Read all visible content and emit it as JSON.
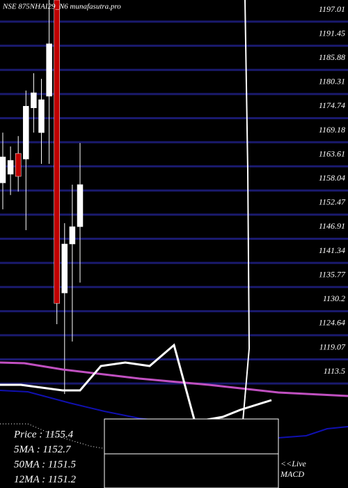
{
  "chart_data": {
    "type": "candlestick",
    "title": "NSE 875NHAI29_N6  munafasutra.pro",
    "ylim": [
      1089.4,
      1202.0
    ],
    "yticks": [
      1197.01,
      1191.45,
      1185.88,
      1180.31,
      1174.74,
      1169.18,
      1163.61,
      1158.04,
      1152.47,
      1146.91,
      1141.34,
      1135.77,
      1130.2,
      1124.64,
      1119.07,
      1113.5
    ],
    "grid": true,
    "grid_color": "#1a1a6e",
    "up_color": "#ffffff",
    "down_color": "#c00000",
    "candles": [
      {
        "open": 1159.8,
        "high": 1171.4,
        "low": 1153.7,
        "close": 1165.8
      },
      {
        "open": 1161.8,
        "high": 1168.2,
        "low": 1157.0,
        "close": 1165.0
      },
      {
        "open": 1166.6,
        "high": 1170.6,
        "low": 1157.8,
        "close": 1161.3
      },
      {
        "open": 1165.3,
        "high": 1181.1,
        "low": 1148.9,
        "close": 1177.5
      },
      {
        "open": 1177.1,
        "high": 1185.1,
        "low": 1171.4,
        "close": 1180.6
      },
      {
        "open": 1171.4,
        "high": 1183.8,
        "low": 1164.2,
        "close": 1179.0
      },
      {
        "open": 1179.8,
        "high": 1202.0,
        "low": 1164.2,
        "close": 1191.9
      },
      {
        "open": 1202.0,
        "high": 1202.0,
        "low": 1127.2,
        "close": 1132.0
      },
      {
        "open": 1134.4,
        "high": 1150.5,
        "low": 1111.1,
        "close": 1145.7
      },
      {
        "open": 1145.7,
        "high": 1159.4,
        "low": 1123.2,
        "close": 1149.7
      },
      {
        "open": 1149.7,
        "high": 1169.0,
        "low": 1136.8,
        "close": 1159.4
      }
    ],
    "info": [
      "Price   : 1155.4",
      "5MA : 1152.7",
      "50MA : 1151.5",
      "12MA : 1151.2"
    ],
    "macd_label": [
      "<<Live",
      "MACD"
    ]
  }
}
